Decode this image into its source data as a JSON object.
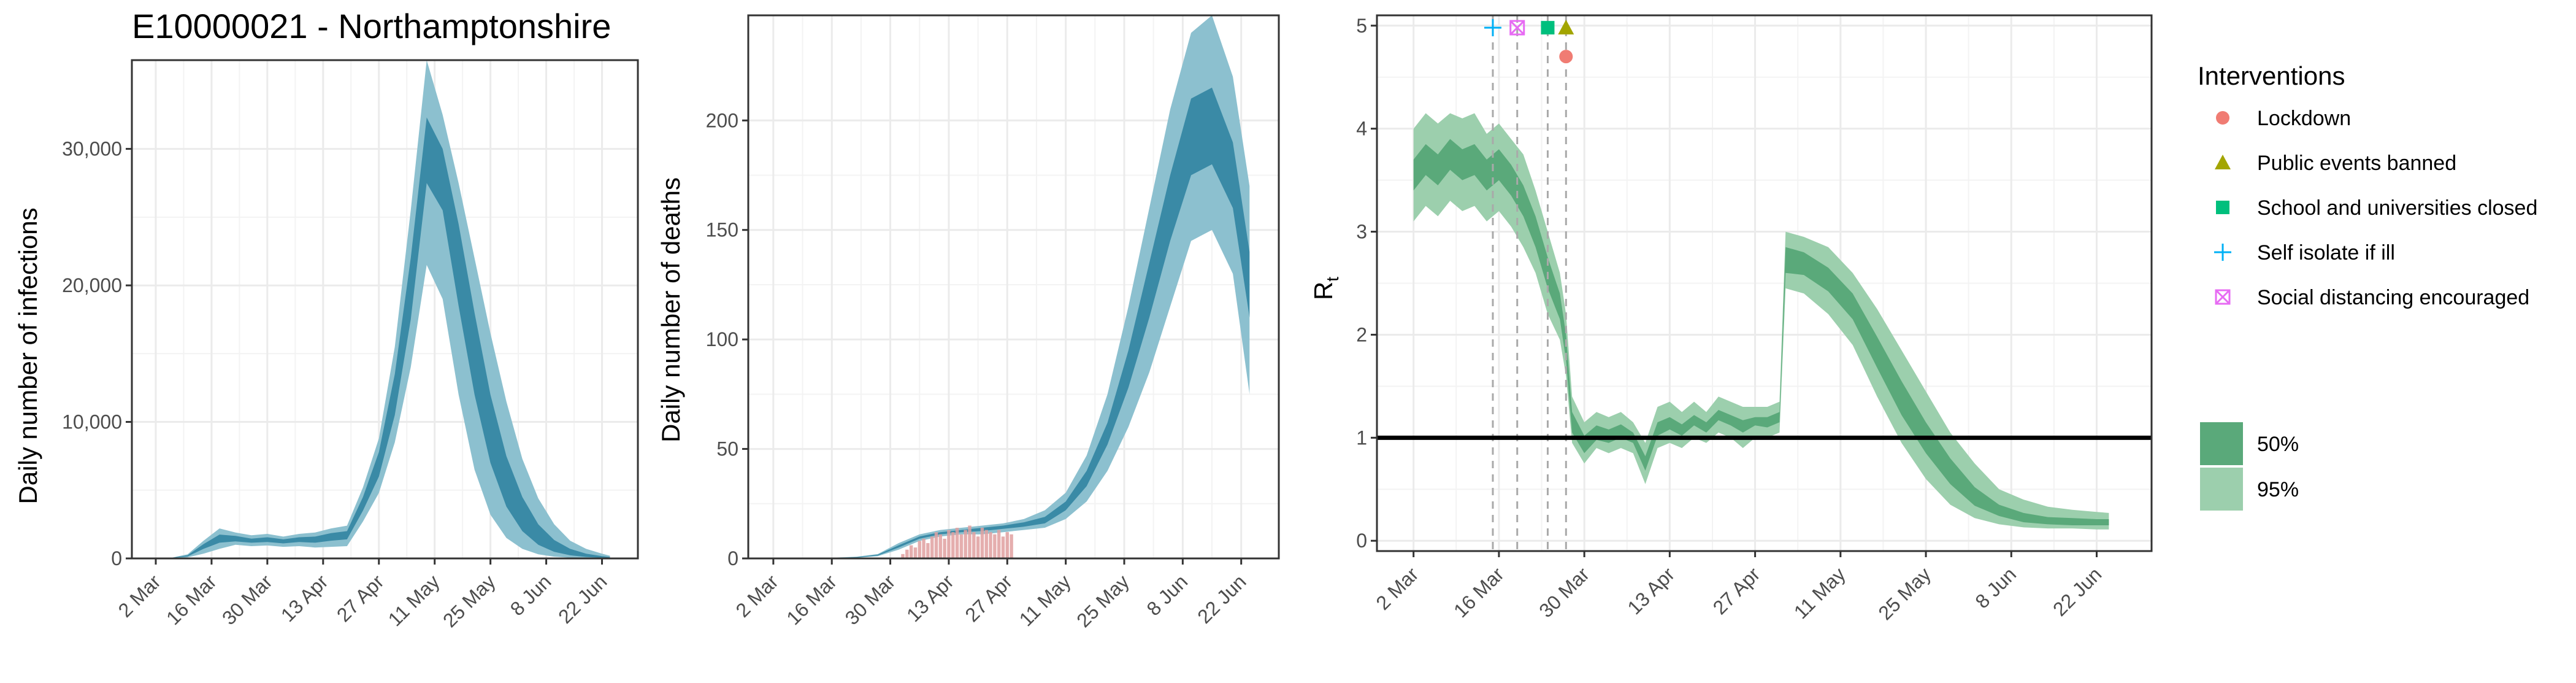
{
  "colors": {
    "infection_outer": "#8cc0cf",
    "infection_inner": "#3a8aa6",
    "deaths_observed": "#e0a0a0",
    "rt_outer": "#9ccfad",
    "rt_inner": "#5aa97a",
    "lockdown": "#f07c73",
    "public_events": "#a3a500",
    "schools": "#00bf7d",
    "self_isolate": "#00b0f6",
    "social_distancing": "#e76bf3",
    "legend_50": "#5aa97a",
    "legend_95": "#9ccfad",
    "reference_line": "#000000",
    "grid": "#ebebeb"
  },
  "chart_data": [
    {
      "type": "area",
      "title": "E10000021 - Northamptonshire",
      "xlabel": "",
      "ylabel": "Daily number of infections",
      "x_ticks": [
        "2 Mar",
        "16 Mar",
        "30 Mar",
        "13 Apr",
        "27 Apr",
        "11 May",
        "25 May",
        "8 Jun",
        "22 Jun"
      ],
      "y_ticks": [
        "0",
        "10,000",
        "20,000",
        "30,000"
      ],
      "y_tick_values": [
        0,
        10000,
        20000,
        30000
      ],
      "ylim": [
        0,
        36500
      ],
      "x_day_range": [
        -6,
        121
      ],
      "grid": true,
      "series": [
        {
          "band": "95%",
          "x_day": [
            0,
            4,
            8,
            12,
            16,
            20,
            24,
            28,
            32,
            36,
            40,
            44,
            48,
            52,
            56,
            60,
            64,
            68,
            72,
            76,
            80,
            84,
            88,
            92,
            96,
            100,
            104,
            108,
            112,
            114
          ],
          "lower": [
            0,
            20,
            80,
            350,
            700,
            1000,
            900,
            950,
            850,
            900,
            800,
            850,
            900,
            2700,
            4800,
            8500,
            14000,
            21500,
            19000,
            12000,
            6500,
            3200,
            1500,
            700,
            300,
            130,
            60,
            25,
            10,
            5
          ],
          "upper": [
            10,
            60,
            300,
            1300,
            2200,
            1900,
            1700,
            1800,
            1600,
            1800,
            1900,
            2200,
            2400,
            5200,
            8800,
            15500,
            25500,
            36500,
            32500,
            27500,
            22000,
            16500,
            11500,
            7300,
            4400,
            2500,
            1300,
            700,
            350,
            200
          ]
        },
        {
          "band": "50%",
          "x_day": [
            0,
            4,
            8,
            12,
            16,
            20,
            24,
            28,
            32,
            36,
            40,
            44,
            48,
            52,
            56,
            60,
            64,
            68,
            72,
            76,
            80,
            84,
            88,
            92,
            96,
            100,
            104,
            108,
            112,
            114
          ],
          "lower": [
            0,
            30,
            150,
            700,
            1150,
            1250,
            1150,
            1200,
            1100,
            1200,
            1150,
            1300,
            1400,
            3500,
            6000,
            10500,
            17500,
            27500,
            25500,
            18500,
            12000,
            7000,
            3800,
            2000,
            1000,
            480,
            230,
            110,
            50,
            30
          ],
          "upper": [
            5,
            45,
            230,
            1050,
            1750,
            1650,
            1450,
            1550,
            1400,
            1550,
            1600,
            1850,
            2000,
            4500,
            7800,
            13500,
            22000,
            32300,
            30000,
            24500,
            18000,
            12000,
            7500,
            4500,
            2500,
            1350,
            700,
            350,
            170,
            110
          ]
        }
      ]
    },
    {
      "type": "area",
      "title": "",
      "xlabel": "",
      "ylabel": "Daily number of deaths",
      "x_ticks": [
        "2 Mar",
        "16 Mar",
        "30 Mar",
        "13 Apr",
        "27 Apr",
        "11 May",
        "25 May",
        "8 Jun",
        "22 Jun"
      ],
      "y_ticks": [
        "0",
        "50",
        "100",
        "150",
        "200"
      ],
      "y_tick_values": [
        0,
        50,
        100,
        150,
        200
      ],
      "ylim": [
        0,
        248
      ],
      "x_day_range": [
        -6,
        121
      ],
      "grid": true,
      "series": [
        {
          "band": "95%",
          "x_day": [
            0,
            10,
            20,
            25,
            30,
            35,
            40,
            45,
            50,
            55,
            60,
            65,
            70,
            75,
            80,
            85,
            90,
            95,
            100,
            105,
            110,
            114
          ],
          "lower": [
            0,
            0,
            0.3,
            1,
            4,
            8,
            10,
            11,
            11,
            12,
            13,
            14,
            18,
            26,
            40,
            60,
            85,
            115,
            145,
            150,
            130,
            75
          ],
          "upper": [
            0,
            0,
            0.8,
            2,
            7,
            11,
            13,
            14,
            15,
            16,
            18,
            22,
            30,
            47,
            75,
            115,
            160,
            205,
            240,
            248,
            220,
            170
          ]
        },
        {
          "band": "50%",
          "x_day": [
            0,
            10,
            20,
            25,
            30,
            35,
            40,
            45,
            50,
            55,
            60,
            65,
            70,
            75,
            80,
            85,
            90,
            95,
            100,
            105,
            110,
            114
          ],
          "lower": [
            0,
            0,
            0.4,
            1.3,
            5,
            9,
            11,
            12,
            12.5,
            13.5,
            14.5,
            16,
            22,
            33,
            52,
            78,
            110,
            145,
            175,
            180,
            160,
            110
          ],
          "upper": [
            0,
            0,
            0.6,
            1.7,
            6,
            10,
            12,
            13,
            14,
            15,
            16.5,
            19,
            26,
            40,
            62,
            95,
            135,
            175,
            210,
            215,
            190,
            140
          ]
        },
        {
          "name": "observed deaths",
          "x_day": [
            31,
            32,
            33,
            34,
            35,
            36,
            37,
            38,
            39,
            40,
            41,
            42,
            43,
            44,
            45,
            46,
            47,
            48,
            49,
            50,
            51,
            52,
            53,
            54,
            55,
            56,
            57
          ],
          "values": [
            2,
            4,
            6,
            5,
            8,
            9,
            7,
            10,
            12,
            11,
            9,
            13,
            12,
            14,
            11,
            13,
            15,
            12,
            10,
            14,
            13,
            12,
            11,
            13,
            10,
            12,
            11
          ]
        }
      ]
    },
    {
      "type": "area",
      "title": "",
      "xlabel": "",
      "ylabel": "R",
      "ylabel_subscript": "t",
      "x_ticks": [
        "2 Mar",
        "16 Mar",
        "30 Mar",
        "13 Apr",
        "27 Apr",
        "11 May",
        "25 May",
        "8 Jun",
        "22 Jun"
      ],
      "y_ticks": [
        "0",
        "1",
        "2",
        "3",
        "4",
        "5"
      ],
      "y_tick_values": [
        0,
        1,
        2,
        3,
        4,
        5
      ],
      "ylim": [
        -0.1,
        5.1
      ],
      "x_day_range": [
        -6,
        121
      ],
      "grid": true,
      "reference_line_y": 1,
      "intervention_day": [
        13,
        17,
        22,
        25
      ],
      "series": [
        {
          "band": "95%",
          "x_day": [
            0,
            2,
            4,
            6,
            8,
            10,
            12,
            14,
            16,
            18,
            20,
            22,
            24,
            25,
            26,
            28,
            30,
            32,
            34,
            36,
            38,
            40,
            42,
            44,
            46,
            48,
            50,
            52,
            54,
            56,
            58,
            60,
            61,
            64,
            68,
            72,
            76,
            80,
            84,
            88,
            92,
            96,
            100,
            104,
            108,
            112,
            114
          ],
          "lower": [
            3.1,
            3.25,
            3.15,
            3.3,
            3.2,
            3.25,
            3.1,
            3.2,
            3.05,
            2.85,
            2.6,
            2.2,
            1.95,
            1.6,
            0.95,
            0.75,
            0.9,
            0.85,
            0.9,
            0.85,
            0.55,
            0.9,
            0.95,
            0.9,
            1.0,
            0.95,
            1.05,
            1.0,
            0.9,
            1.0,
            1.0,
            1.05,
            2.45,
            2.4,
            2.2,
            1.9,
            1.4,
            0.95,
            0.6,
            0.35,
            0.22,
            0.16,
            0.13,
            0.12,
            0.12,
            0.11,
            0.11
          ],
          "upper": [
            4.0,
            4.15,
            4.05,
            4.15,
            4.1,
            4.15,
            3.95,
            4.05,
            3.9,
            3.75,
            3.4,
            3.0,
            2.6,
            2.2,
            1.4,
            1.15,
            1.25,
            1.2,
            1.25,
            1.15,
            0.95,
            1.3,
            1.35,
            1.25,
            1.35,
            1.25,
            1.4,
            1.35,
            1.3,
            1.3,
            1.3,
            1.35,
            3.0,
            2.95,
            2.85,
            2.6,
            2.25,
            1.85,
            1.45,
            1.05,
            0.75,
            0.5,
            0.4,
            0.33,
            0.3,
            0.28,
            0.27
          ]
        },
        {
          "band": "50%",
          "x_day": [
            0,
            2,
            4,
            6,
            8,
            10,
            12,
            14,
            16,
            18,
            20,
            22,
            24,
            25,
            26,
            28,
            30,
            32,
            34,
            36,
            38,
            40,
            42,
            44,
            46,
            48,
            50,
            52,
            54,
            56,
            58,
            60,
            61,
            64,
            68,
            72,
            76,
            80,
            84,
            88,
            92,
            96,
            100,
            104,
            108,
            112,
            114
          ],
          "lower": [
            3.4,
            3.55,
            3.45,
            3.6,
            3.5,
            3.55,
            3.4,
            3.5,
            3.35,
            3.15,
            2.85,
            2.45,
            2.15,
            1.75,
            1.05,
            0.85,
            0.98,
            0.95,
            1.0,
            0.95,
            0.68,
            1.02,
            1.08,
            1.02,
            1.12,
            1.05,
            1.17,
            1.12,
            1.05,
            1.12,
            1.1,
            1.15,
            2.6,
            2.58,
            2.42,
            2.15,
            1.68,
            1.22,
            0.85,
            0.55,
            0.34,
            0.24,
            0.18,
            0.16,
            0.15,
            0.15,
            0.15
          ],
          "upper": [
            3.7,
            3.85,
            3.75,
            3.9,
            3.8,
            3.85,
            3.7,
            3.8,
            3.65,
            3.45,
            3.15,
            2.75,
            2.4,
            2.0,
            1.25,
            1.02,
            1.12,
            1.08,
            1.13,
            1.05,
            0.82,
            1.15,
            1.2,
            1.13,
            1.22,
            1.15,
            1.27,
            1.22,
            1.17,
            1.2,
            1.2,
            1.25,
            2.85,
            2.8,
            2.65,
            2.4,
            1.98,
            1.55,
            1.15,
            0.8,
            0.52,
            0.35,
            0.27,
            0.23,
            0.22,
            0.21,
            0.21
          ]
        }
      ],
      "intervention_markers": [
        {
          "name": "Self isolate if ill",
          "x_day": 13,
          "y": 4.98,
          "shape": "plus",
          "color": "#00b0f6"
        },
        {
          "name": "Social distancing encouraged",
          "x_day": 17,
          "y": 4.98,
          "shape": "square-x",
          "color": "#e76bf3"
        },
        {
          "name": "School and universities closed",
          "x_day": 22,
          "y": 4.98,
          "shape": "square",
          "color": "#00bf7d"
        },
        {
          "name": "Public events banned",
          "x_day": 25,
          "y": 4.98,
          "shape": "triangle",
          "color": "#a3a500"
        },
        {
          "name": "Lockdown",
          "x_day": 25,
          "y": 4.7,
          "shape": "circle",
          "color": "#f07c73"
        }
      ]
    }
  ],
  "legend": {
    "interventions_title": "Interventions",
    "interventions": [
      {
        "label": "Lockdown",
        "shape": "circle",
        "color": "#f07c73"
      },
      {
        "label": "Public events banned",
        "shape": "triangle",
        "color": "#a3a500"
      },
      {
        "label": "School and universities closed",
        "shape": "square",
        "color": "#00bf7d"
      },
      {
        "label": "Self isolate if ill",
        "shape": "plus",
        "color": "#00b0f6"
      },
      {
        "label": "Social distancing encouraged",
        "shape": "square-x",
        "color": "#e76bf3"
      }
    ],
    "bands": [
      {
        "label": "50%",
        "color": "#5aa97a"
      },
      {
        "label": "95%",
        "color": "#9ccfad"
      }
    ]
  }
}
